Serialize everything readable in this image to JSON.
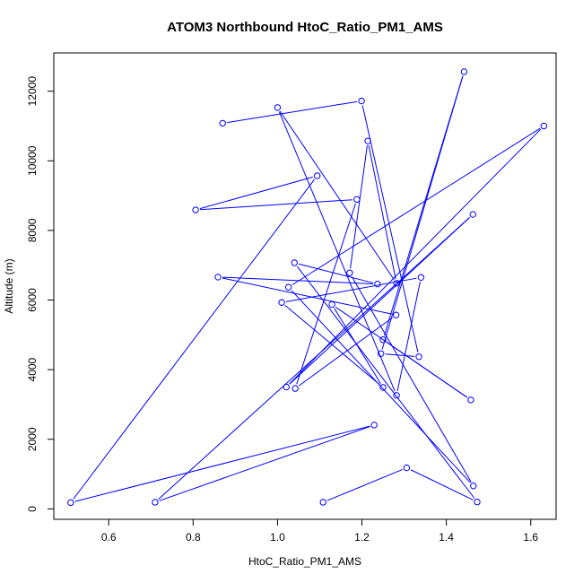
{
  "chart_data": {
    "type": "line",
    "title": "ATOM3 Northbound HtoC_Ratio_PM1_AMS",
    "xlabel": "HtoC_Ratio_PM1_AMS",
    "ylabel": "Altitude (m)",
    "xlim": [
      0.47,
      1.66
    ],
    "ylim": [
      -300,
      13100
    ],
    "xticks": [
      0.6,
      0.8,
      1.0,
      1.2,
      1.4,
      1.6
    ],
    "xtick_labels": [
      "0.6",
      "0.8",
      "1.0",
      "1.2",
      "1.4",
      "1.6"
    ],
    "yticks": [
      0,
      2000,
      4000,
      6000,
      8000,
      10000,
      12000
    ],
    "ytick_labels": [
      "0",
      "2000",
      "4000",
      "6000",
      "8000",
      "10000",
      "12000"
    ],
    "grid": false,
    "color": "#0000FF",
    "series": [
      {
        "points": [
          {
            "x": 1.108,
            "y": 190
          },
          {
            "x": 1.306,
            "y": 1180
          },
          {
            "x": 1.473,
            "y": 200
          },
          {
            "x": 1.04,
            "y": 7070
          },
          {
            "x": 1.237,
            "y": 6460
          },
          {
            "x": 0.859,
            "y": 6660
          },
          {
            "x": 1.281,
            "y": 5570
          },
          {
            "x": 1.042,
            "y": 3460
          },
          {
            "x": 1.188,
            "y": 8890
          },
          {
            "x": 0.806,
            "y": 8590
          },
          {
            "x": 1.094,
            "y": 9570
          },
          {
            "x": 0.51,
            "y": 180
          },
          {
            "x": 1.229,
            "y": 2410
          },
          {
            "x": 0.71,
            "y": 190
          },
          {
            "x": 1.463,
            "y": 8460
          },
          {
            "x": 1.021,
            "y": 3500
          },
          {
            "x": 1.631,
            "y": 11000
          },
          {
            "x": 1.026,
            "y": 6370
          },
          {
            "x": 1.464,
            "y": 660
          },
          {
            "x": 1.171,
            "y": 6780
          },
          {
            "x": 1.214,
            "y": 10570
          },
          {
            "x": 1.282,
            "y": 6480
          },
          {
            "x": 1.0,
            "y": 11530
          },
          {
            "x": 1.282,
            "y": 3260
          },
          {
            "x": 1.34,
            "y": 6650
          },
          {
            "x": 1.01,
            "y": 5930
          },
          {
            "x": 1.25,
            "y": 3490
          },
          {
            "x": 1.129,
            "y": 5870
          },
          {
            "x": 1.458,
            "y": 3130
          },
          {
            "x": 1.25,
            "y": 4860
          },
          {
            "x": 1.442,
            "y": 12560
          },
          {
            "x": 1.245,
            "y": 4460
          },
          {
            "x": 1.335,
            "y": 4370
          },
          {
            "x": 1.199,
            "y": 11720
          },
          {
            "x": 0.87,
            "y": 11080
          }
        ]
      }
    ]
  }
}
